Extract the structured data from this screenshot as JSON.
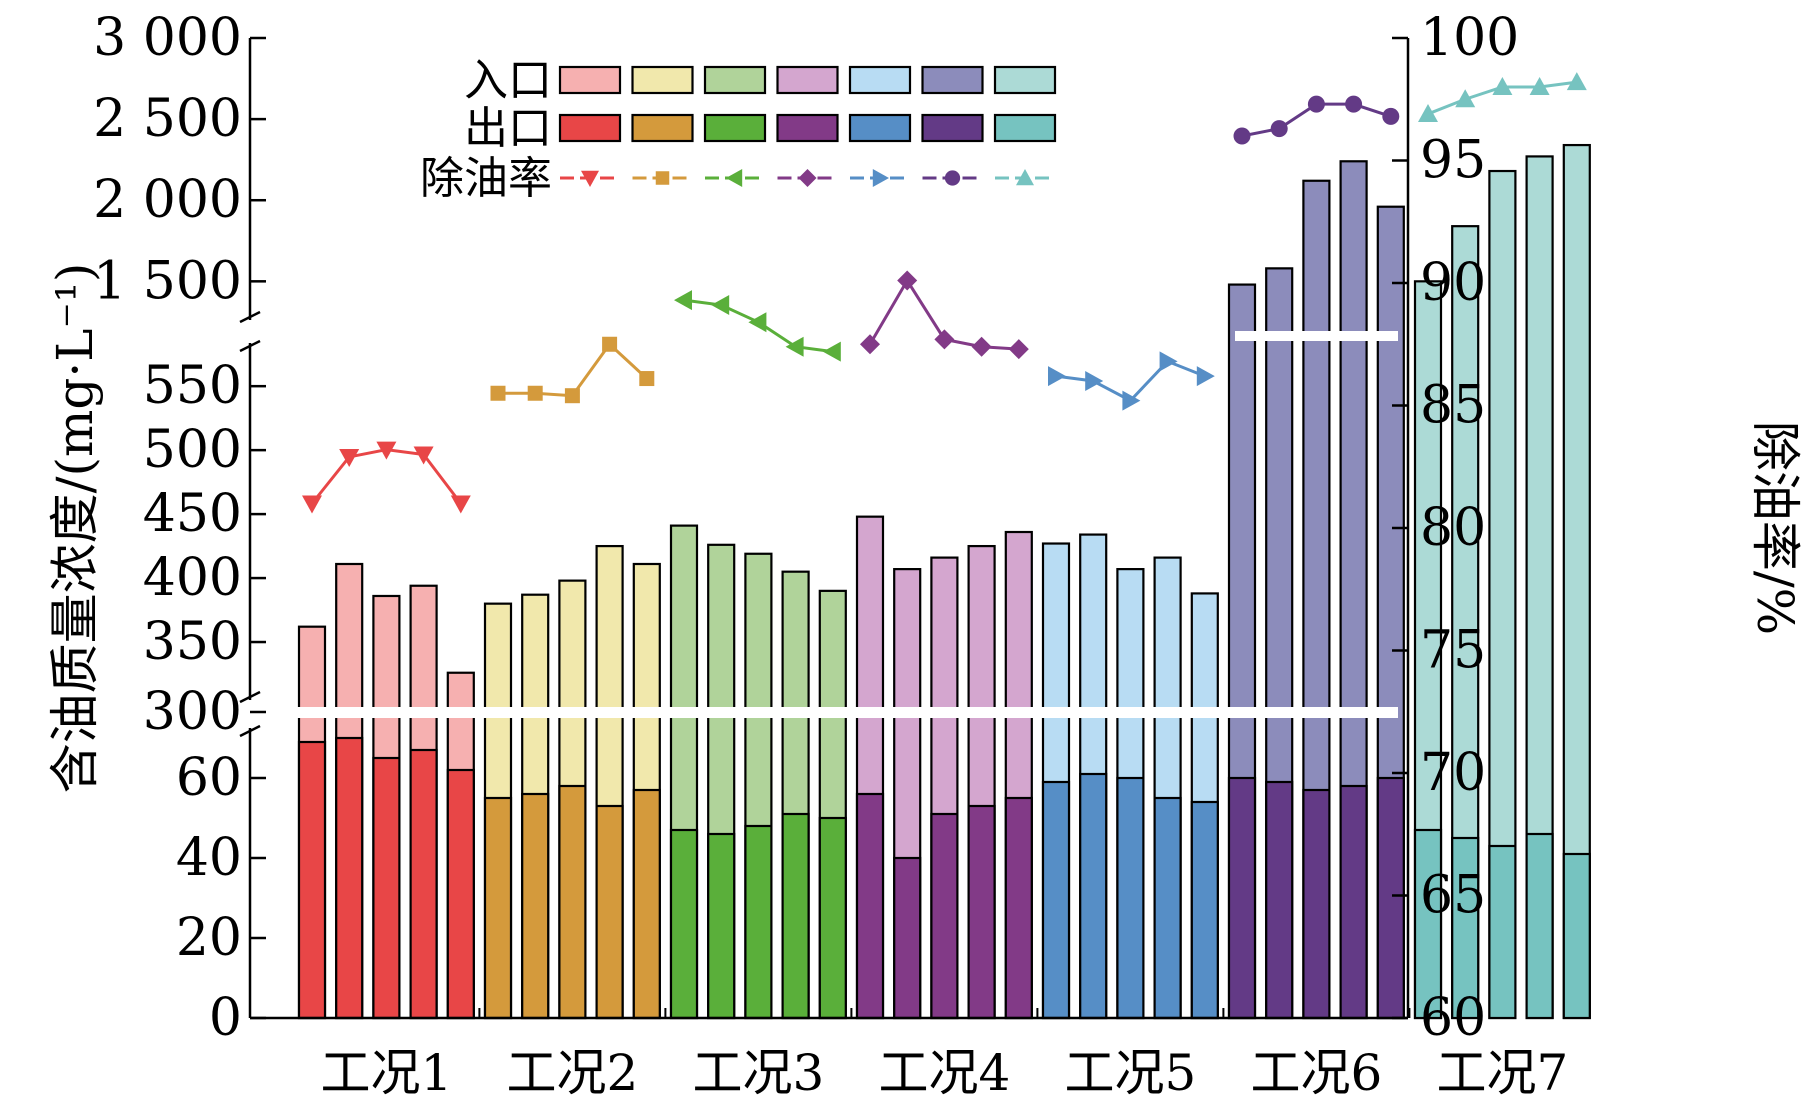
{
  "chart_data": {
    "type": "bar",
    "categories": [
      "工况1",
      "工况2",
      "工况3",
      "工况4",
      "工况5",
      "工况6",
      "工况7"
    ],
    "ylabel": "含油质量浓度/(mg·L⁻¹)",
    "y2label": "除油率/%",
    "y_broken_axis": true,
    "y_segments": [
      [
        0,
        70
      ],
      [
        300,
        590
      ],
      [
        1200,
        3000
      ]
    ],
    "yticks": {
      "lower": [
        "0",
        "20",
        "40",
        "60"
      ],
      "middle": [
        "300",
        "350",
        "400",
        "450",
        "500",
        "550"
      ],
      "upper": [
        "1 500",
        "2 000",
        "2 500",
        "3 000"
      ]
    },
    "y2lim": [
      60,
      100
    ],
    "y2ticks": [
      "60",
      "65",
      "70",
      "75",
      "80",
      "85",
      "90",
      "95",
      "100"
    ],
    "legend": {
      "position": "top-left",
      "row_labels": [
        "入口",
        "出口",
        "除油率"
      ]
    },
    "series": [
      {
        "name": "入口",
        "values": [
          [
            362,
            411,
            386,
            394,
            326
          ],
          [
            380,
            387,
            398,
            425,
            411
          ],
          [
            441,
            426,
            419,
            405,
            390
          ],
          [
            448,
            407,
            416,
            425,
            436
          ],
          [
            427,
            434,
            407,
            416,
            388
          ],
          [
            1480,
            1580,
            2120,
            2240,
            1960
          ],
          [
            1500,
            1840,
            2180,
            2270,
            2340
          ]
        ],
        "colors": [
          "#f6b0b0",
          "#f1e8ac",
          "#b0d39a",
          "#d4a6cf",
          "#b8dcf3",
          "#8c8cbb",
          "#acdad6"
        ]
      },
      {
        "name": "出口",
        "values": [
          [
            69,
            70,
            65,
            67,
            62
          ],
          [
            55,
            56,
            58,
            53,
            57
          ],
          [
            47,
            46,
            48,
            51,
            50
          ],
          [
            56,
            40,
            51,
            53,
            55
          ],
          [
            59,
            61,
            60,
            55,
            54
          ],
          [
            60,
            59,
            57,
            58,
            60
          ],
          [
            47,
            45,
            43,
            46,
            41
          ]
        ],
        "colors": [
          "#e84647",
          "#d49a3c",
          "#5aaf3a",
          "#823a87",
          "#568ec6",
          "#633a86",
          "#76c3c0"
        ]
      },
      {
        "name": "除油率",
        "axis": "right",
        "values": [
          [
            81.0,
            82.9,
            83.2,
            83.0,
            81.0
          ],
          [
            85.5,
            85.5,
            85.4,
            87.5,
            86.1
          ],
          [
            89.3,
            89.1,
            88.4,
            87.4,
            87.2
          ],
          [
            87.5,
            90.1,
            87.7,
            87.4,
            87.3
          ],
          [
            86.2,
            86.0,
            85.2,
            86.8,
            86.2
          ],
          [
            96.0,
            96.3,
            97.3,
            97.3,
            96.8
          ],
          [
            96.9,
            97.5,
            98.0,
            98.0,
            98.2
          ]
        ],
        "colors": [
          "#e84647",
          "#d49a3c",
          "#5aaf3a",
          "#823a87",
          "#568ec6",
          "#633a86",
          "#76c3c0"
        ],
        "markers": [
          "triangle-down",
          "square",
          "triangle-left",
          "diamond",
          "triangle-right",
          "circle",
          "triangle-up"
        ]
      }
    ]
  }
}
